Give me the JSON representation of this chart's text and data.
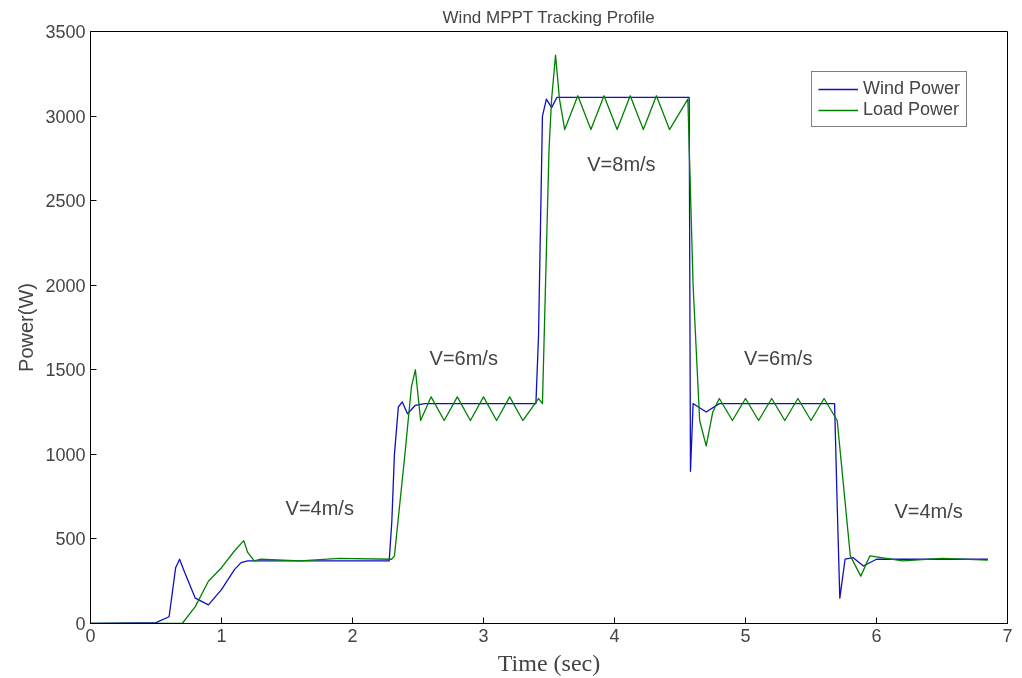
{
  "chart_data": {
    "type": "line",
    "title": "Wind MPPT Tracking Profile",
    "xlabel": "Time (sec)",
    "ylabel": "Power(W)",
    "xlim": [
      0,
      7
    ],
    "ylim": [
      0,
      3500
    ],
    "xticks": [
      0,
      1,
      2,
      3,
      4,
      5,
      6,
      7
    ],
    "yticks": [
      0,
      500,
      1000,
      1500,
      2000,
      2500,
      3000,
      3500
    ],
    "grid": false,
    "legend": "top right",
    "line_style": "solid",
    "marker": "none",
    "series": [
      {
        "name": "Wind Power",
        "color": "#1010c0",
        "x": [
          0,
          0.5,
          0.6,
          0.65,
          0.68,
          0.72,
          0.8,
          0.9,
          1.0,
          1.1,
          1.15,
          1.2,
          2.28,
          2.3,
          2.32,
          2.35,
          2.38,
          2.42,
          2.48,
          2.55,
          3.4,
          3.42,
          3.45,
          3.48,
          3.52,
          3.56,
          4.0,
          4.57,
          4.58,
          4.6,
          4.62,
          4.7,
          4.8,
          5.68,
          5.7,
          5.72,
          5.76,
          5.82,
          5.9,
          6.0,
          6.85
        ],
        "values": [
          0,
          5,
          40,
          330,
          380,
          300,
          150,
          110,
          200,
          320,
          360,
          370,
          370,
          600,
          1000,
          1280,
          1310,
          1240,
          1290,
          1300,
          1300,
          1700,
          3000,
          3100,
          3050,
          3110,
          3110,
          3110,
          900,
          1300,
          1290,
          1250,
          1300,
          1300,
          700,
          150,
          380,
          390,
          340,
          380,
          380
        ]
      },
      {
        "name": "Load Power",
        "color": "#008000",
        "x": [
          0,
          0.7,
          0.8,
          0.9,
          1.0,
          1.1,
          1.17,
          1.2,
          1.25,
          1.3,
          1.6,
          1.9,
          2.3,
          2.32,
          2.4,
          2.45,
          2.48,
          2.5,
          2.52,
          2.6,
          2.7,
          2.8,
          2.9,
          3.0,
          3.1,
          3.2,
          3.3,
          3.42,
          3.45,
          3.5,
          3.52,
          3.55,
          3.58,
          3.62,
          3.72,
          3.82,
          3.92,
          4.02,
          4.12,
          4.22,
          4.32,
          4.42,
          4.56,
          4.6,
          4.65,
          4.7,
          4.75,
          4.8,
          4.9,
          5.0,
          5.1,
          5.2,
          5.3,
          5.4,
          5.5,
          5.6,
          5.7,
          5.75,
          5.8,
          5.88,
          5.95,
          6.2,
          6.5,
          6.85
        ],
        "values": [
          0,
          0,
          100,
          250,
          330,
          430,
          490,
          420,
          370,
          380,
          370,
          385,
          380,
          400,
          1000,
          1400,
          1500,
          1350,
          1200,
          1340,
          1200,
          1340,
          1200,
          1340,
          1200,
          1340,
          1200,
          1330,
          1300,
          2800,
          3100,
          3360,
          3100,
          2920,
          3120,
          2920,
          3120,
          2920,
          3120,
          2920,
          3120,
          2920,
          3100,
          2000,
          1200,
          1050,
          1250,
          1330,
          1200,
          1330,
          1200,
          1330,
          1200,
          1330,
          1200,
          1330,
          1200,
          800,
          400,
          280,
          400,
          370,
          385,
          375
        ]
      }
    ],
    "annotations": [
      "V=4m/s",
      "V=6m/s",
      "V=8m/s",
      "V=6m/s",
      "V=4m/s"
    ]
  }
}
